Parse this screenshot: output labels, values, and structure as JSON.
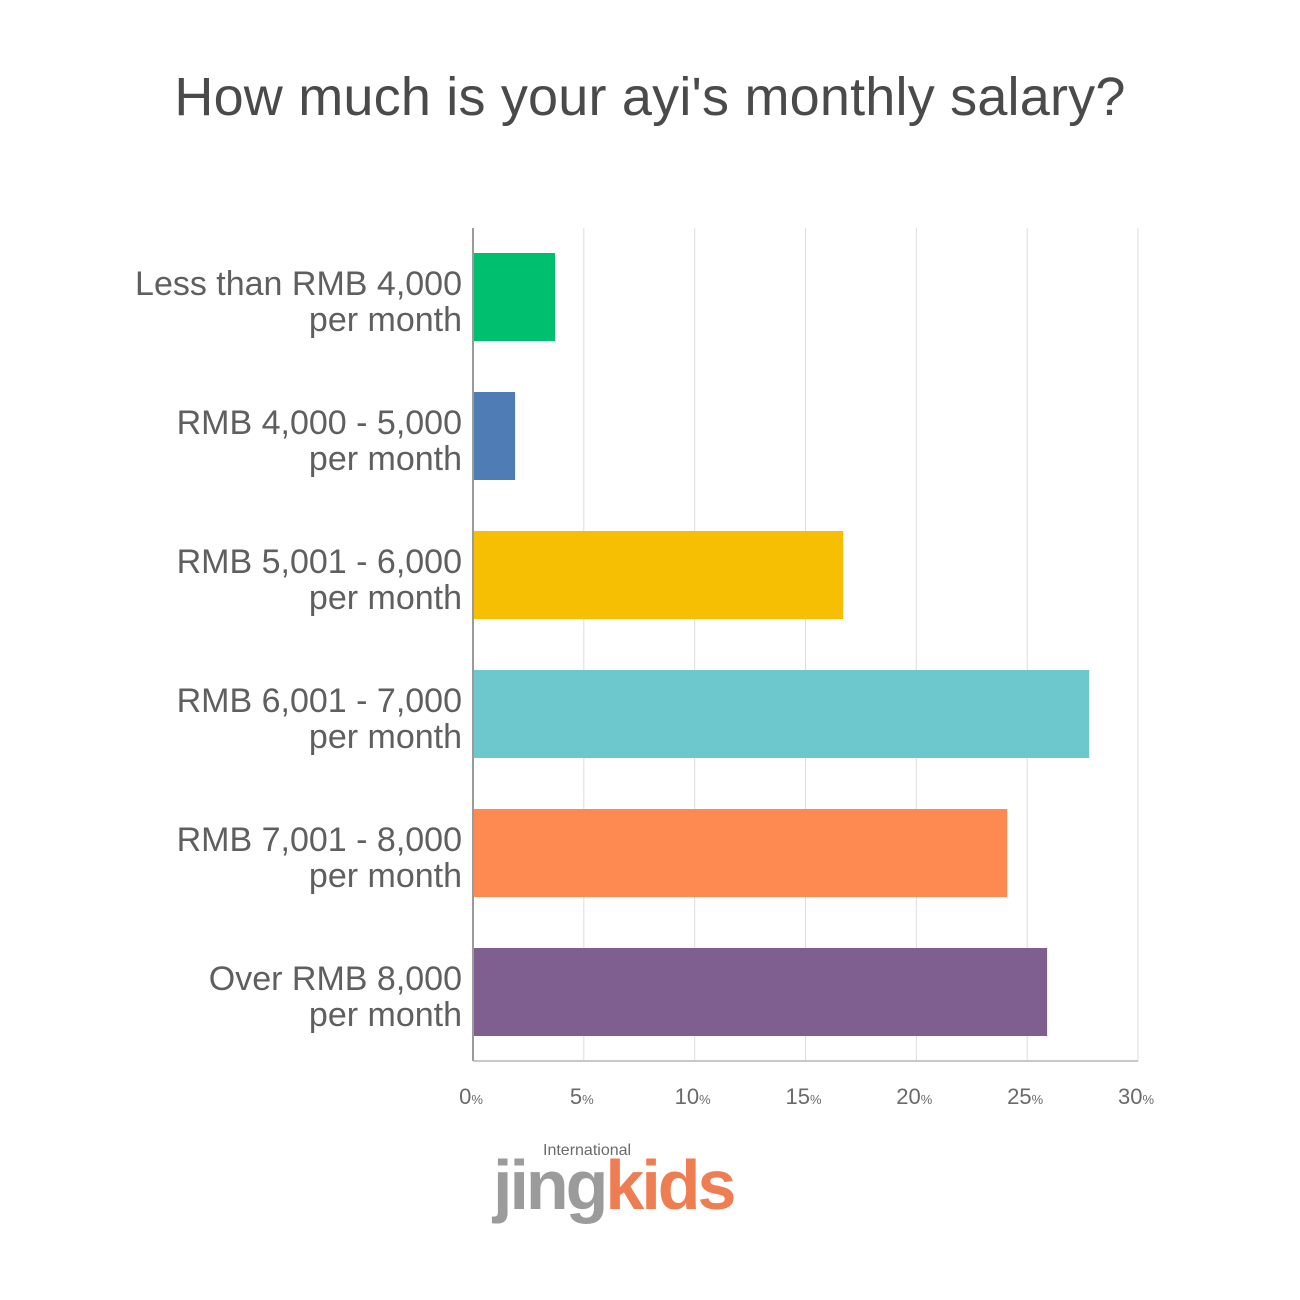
{
  "title": "How much is your ayi's monthly salary?",
  "chart_data": {
    "type": "bar",
    "orientation": "horizontal",
    "title": "How much is your ayi's monthly salary?",
    "categories": [
      [
        "Less than RMB 4,000",
        "per month"
      ],
      [
        "RMB 4,000 - 5,000",
        "per month"
      ],
      [
        "RMB 5,001 - 6,000",
        "per month"
      ],
      [
        "RMB 6,001 - 7,000",
        "per month"
      ],
      [
        "RMB 7,001 - 8,000",
        "per month"
      ],
      [
        "Over RMB 8,000",
        "per month"
      ]
    ],
    "values": [
      3.7,
      1.9,
      16.7,
      27.8,
      24.1,
      25.9
    ],
    "colors": [
      "#00bf6f",
      "#507cb6",
      "#f6bf04",
      "#6cc8cc",
      "#fe8a52",
      "#7f5f90"
    ],
    "xlim": [
      0,
      30
    ],
    "xticks": [
      0,
      5,
      10,
      15,
      20,
      25,
      30
    ],
    "tick_unit": "%",
    "grid": "vertical",
    "xlabel": "",
    "ylabel": ""
  },
  "logo": {
    "small": "International",
    "part1": "jing",
    "part2": "kids"
  }
}
